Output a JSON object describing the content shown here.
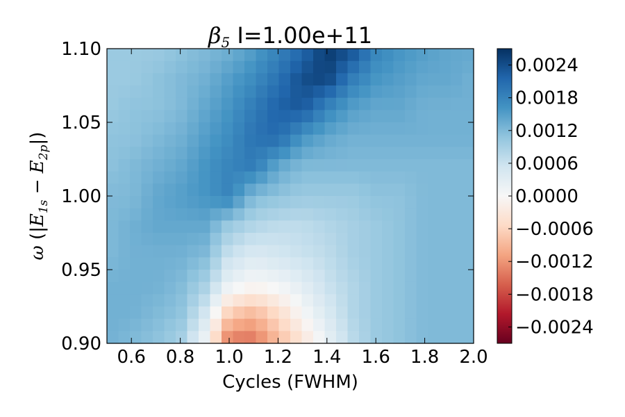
{
  "chart_data": {
    "type": "heatmap",
    "title": {
      "symbol": "β",
      "subscript": "5",
      "text": " I=1.00e+11"
    },
    "xlabel": "Cycles (FWHM)",
    "ylabel": {
      "omega": "ω",
      "open": " (|",
      "e1": "E",
      "e1_sub": "1s",
      "minus": " − ",
      "e2": "E",
      "e2_sub": "2p",
      "close": "|)"
    },
    "xlim": [
      0.5,
      2.0
    ],
    "ylim": [
      0.9,
      1.1
    ],
    "x_ticks": [
      "0.6",
      "0.8",
      "1.0",
      "1.2",
      "1.4",
      "1.6",
      "1.8",
      "2.0"
    ],
    "y_ticks": [
      "0.90",
      "0.95",
      "1.00",
      "1.05",
      "1.10"
    ],
    "colorbar": {
      "colormap": "RdBu",
      "range": [
        -0.0027,
        0.0027
      ],
      "ticks": [
        "0.0024",
        "0.0018",
        "0.0012",
        "0.0006",
        "0.0000",
        "−0.0006",
        "−0.0012",
        "−0.0018",
        "−0.0024"
      ]
    },
    "x_centers": [
      0.5,
      0.6,
      0.7,
      0.8,
      0.9,
      1.0,
      1.1,
      1.2,
      1.3,
      1.4,
      1.5,
      1.6,
      1.7,
      1.8,
      1.9,
      2.0
    ],
    "y_centers": [
      0.9,
      0.92,
      0.94,
      0.96,
      0.98,
      1.0,
      1.02,
      1.04,
      1.06,
      1.08,
      1.1
    ],
    "values": [
      [
        0.0013,
        0.0012,
        0.0011,
        0.0009,
        0.0001,
        -0.0015,
        -0.0015,
        -0.0009,
        -0.0004,
        0.0002,
        0.0007,
        0.001,
        0.0011,
        0.0012,
        0.0012,
        0.0012
      ],
      [
        0.0013,
        0.0013,
        0.0012,
        0.0011,
        0.0005,
        -0.0007,
        -0.0009,
        -0.0005,
        0.0,
        0.0004,
        0.0008,
        0.001,
        0.0011,
        0.0012,
        0.0012,
        0.0012
      ],
      [
        0.0013,
        0.0013,
        0.0013,
        0.0012,
        0.0009,
        0.0002,
        0.0,
        0.0001,
        0.0003,
        0.0006,
        0.0008,
        0.001,
        0.0011,
        0.0012,
        0.0012,
        0.0012
      ],
      [
        0.0012,
        0.0013,
        0.0013,
        0.0013,
        0.0012,
        0.0006,
        0.0004,
        0.0005,
        0.0006,
        0.0007,
        0.0009,
        0.001,
        0.0011,
        0.0012,
        0.0012,
        0.0012
      ],
      [
        0.0012,
        0.0013,
        0.0014,
        0.0014,
        0.0014,
        0.001,
        0.0008,
        0.0007,
        0.0007,
        0.0008,
        0.0009,
        0.001,
        0.0011,
        0.0012,
        0.0012,
        0.0012
      ],
      [
        0.0012,
        0.0012,
        0.0014,
        0.0015,
        0.0016,
        0.0018,
        0.0012,
        0.0011,
        0.001,
        0.001,
        0.001,
        0.0011,
        0.0011,
        0.0012,
        0.0012,
        0.0012
      ],
      [
        0.0011,
        0.0012,
        0.0013,
        0.0014,
        0.0016,
        0.0018,
        0.0019,
        0.0014,
        0.0012,
        0.0012,
        0.0012,
        0.0012,
        0.0012,
        0.0012,
        0.0012,
        0.0012
      ],
      [
        0.0011,
        0.0011,
        0.0012,
        0.0013,
        0.0015,
        0.0017,
        0.002,
        0.0021,
        0.0016,
        0.0014,
        0.0013,
        0.0013,
        0.0013,
        0.0013,
        0.0013,
        0.0013
      ],
      [
        0.001,
        0.0011,
        0.0011,
        0.0012,
        0.0014,
        0.0016,
        0.0019,
        0.0022,
        0.0023,
        0.0018,
        0.0015,
        0.0014,
        0.0014,
        0.0013,
        0.0013,
        0.0013
      ],
      [
        0.001,
        0.001,
        0.0011,
        0.0012,
        0.0013,
        0.0015,
        0.0017,
        0.002,
        0.0024,
        0.0025,
        0.0019,
        0.0016,
        0.0015,
        0.0014,
        0.0014,
        0.0013
      ],
      [
        0.001,
        0.001,
        0.001,
        0.0011,
        0.0012,
        0.0013,
        0.0015,
        0.0018,
        0.0021,
        0.0026,
        0.0024,
        0.0018,
        0.0016,
        0.0015,
        0.0014,
        0.0014
      ]
    ]
  }
}
